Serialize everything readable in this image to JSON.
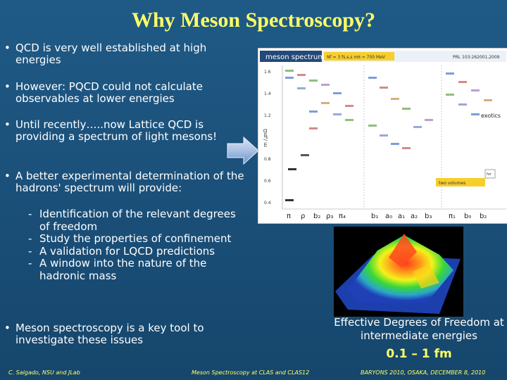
{
  "title": "Why Meson Spectroscopy?",
  "bullets": [
    "QCD is very well established at high energies",
    "However: PQCD could not calculate observables at lower energies",
    "Until recently…..now Lattice QCD is providing a spectrum of light mesons!",
    "A better experimental determination of the hadrons' spectrum will provide:"
  ],
  "sub_items": [
    "Identification of the relevant degrees of freedom",
    "Study the properties of confinement",
    "A validation  for LQCD predictions",
    "A window into the nature of the hadronic mass"
  ],
  "last_bullet": "Meson spectroscopy is a key tool to investigate these issues",
  "bullet_symbol": "•",
  "dash_symbol": "-",
  "spectrum_figure": {
    "header_label": "meson spectrum",
    "params": "Nf = 3 fs,s,s    mπ = 700 MeV",
    "reference": "PRL 103:262001,2009",
    "y_axis_label": "m / mΩ",
    "y_ticks": [
      "1.6",
      "1.4",
      "1.2",
      "1",
      "0.8",
      "0.6",
      "0.4"
    ],
    "exotics_label": "exotics",
    "two_volumes_label": "two volumes",
    "box_label": "for",
    "x_labels": [
      "π",
      "ρ",
      "b₂",
      "ρ₃",
      "π₄",
      "b₁",
      "a₀",
      "a₁",
      "a₂",
      "b₃",
      "π₁",
      "b₀",
      "b₂"
    ]
  },
  "caption": "Effective Degrees of Freedom at intermediate energies",
  "range": "0.1 – 1 fm",
  "footer": {
    "left": "C. Salgado, NSU and JLab",
    "center": "Meson Spectroscopy at CLAS and CLAS12",
    "right": "BARYONS 2010, OSAKA,  DECEMBER 8, 2010"
  },
  "colors": {
    "background": "#1a4f78",
    "title": "#ffff66",
    "text": "#ffffff"
  }
}
